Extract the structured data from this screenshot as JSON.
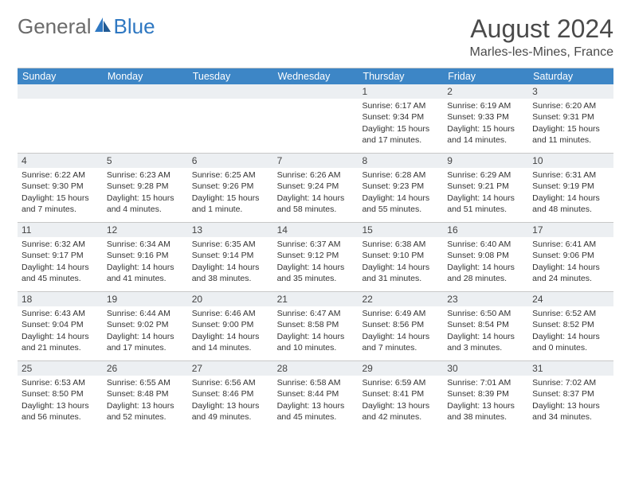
{
  "logo": {
    "part1": "General",
    "part2": "Blue"
  },
  "title": "August 2024",
  "subtitle": "Marles-les-Mines, France",
  "header_bg": "#3d86c6",
  "daynum_bg": "#eceff2",
  "border_color": "#c8c8c8",
  "text_color": "#333333",
  "weekdays": [
    "Sunday",
    "Monday",
    "Tuesday",
    "Wednesday",
    "Thursday",
    "Friday",
    "Saturday"
  ],
  "weeks": [
    [
      {
        "num": "",
        "lines": []
      },
      {
        "num": "",
        "lines": []
      },
      {
        "num": "",
        "lines": []
      },
      {
        "num": "",
        "lines": []
      },
      {
        "num": "1",
        "lines": [
          "Sunrise: 6:17 AM",
          "Sunset: 9:34 PM",
          "Daylight: 15 hours",
          "and 17 minutes."
        ]
      },
      {
        "num": "2",
        "lines": [
          "Sunrise: 6:19 AM",
          "Sunset: 9:33 PM",
          "Daylight: 15 hours",
          "and 14 minutes."
        ]
      },
      {
        "num": "3",
        "lines": [
          "Sunrise: 6:20 AM",
          "Sunset: 9:31 PM",
          "Daylight: 15 hours",
          "and 11 minutes."
        ]
      }
    ],
    [
      {
        "num": "4",
        "lines": [
          "Sunrise: 6:22 AM",
          "Sunset: 9:30 PM",
          "Daylight: 15 hours",
          "and 7 minutes."
        ]
      },
      {
        "num": "5",
        "lines": [
          "Sunrise: 6:23 AM",
          "Sunset: 9:28 PM",
          "Daylight: 15 hours",
          "and 4 minutes."
        ]
      },
      {
        "num": "6",
        "lines": [
          "Sunrise: 6:25 AM",
          "Sunset: 9:26 PM",
          "Daylight: 15 hours",
          "and 1 minute."
        ]
      },
      {
        "num": "7",
        "lines": [
          "Sunrise: 6:26 AM",
          "Sunset: 9:24 PM",
          "Daylight: 14 hours",
          "and 58 minutes."
        ]
      },
      {
        "num": "8",
        "lines": [
          "Sunrise: 6:28 AM",
          "Sunset: 9:23 PM",
          "Daylight: 14 hours",
          "and 55 minutes."
        ]
      },
      {
        "num": "9",
        "lines": [
          "Sunrise: 6:29 AM",
          "Sunset: 9:21 PM",
          "Daylight: 14 hours",
          "and 51 minutes."
        ]
      },
      {
        "num": "10",
        "lines": [
          "Sunrise: 6:31 AM",
          "Sunset: 9:19 PM",
          "Daylight: 14 hours",
          "and 48 minutes."
        ]
      }
    ],
    [
      {
        "num": "11",
        "lines": [
          "Sunrise: 6:32 AM",
          "Sunset: 9:17 PM",
          "Daylight: 14 hours",
          "and 45 minutes."
        ]
      },
      {
        "num": "12",
        "lines": [
          "Sunrise: 6:34 AM",
          "Sunset: 9:16 PM",
          "Daylight: 14 hours",
          "and 41 minutes."
        ]
      },
      {
        "num": "13",
        "lines": [
          "Sunrise: 6:35 AM",
          "Sunset: 9:14 PM",
          "Daylight: 14 hours",
          "and 38 minutes."
        ]
      },
      {
        "num": "14",
        "lines": [
          "Sunrise: 6:37 AM",
          "Sunset: 9:12 PM",
          "Daylight: 14 hours",
          "and 35 minutes."
        ]
      },
      {
        "num": "15",
        "lines": [
          "Sunrise: 6:38 AM",
          "Sunset: 9:10 PM",
          "Daylight: 14 hours",
          "and 31 minutes."
        ]
      },
      {
        "num": "16",
        "lines": [
          "Sunrise: 6:40 AM",
          "Sunset: 9:08 PM",
          "Daylight: 14 hours",
          "and 28 minutes."
        ]
      },
      {
        "num": "17",
        "lines": [
          "Sunrise: 6:41 AM",
          "Sunset: 9:06 PM",
          "Daylight: 14 hours",
          "and 24 minutes."
        ]
      }
    ],
    [
      {
        "num": "18",
        "lines": [
          "Sunrise: 6:43 AM",
          "Sunset: 9:04 PM",
          "Daylight: 14 hours",
          "and 21 minutes."
        ]
      },
      {
        "num": "19",
        "lines": [
          "Sunrise: 6:44 AM",
          "Sunset: 9:02 PM",
          "Daylight: 14 hours",
          "and 17 minutes."
        ]
      },
      {
        "num": "20",
        "lines": [
          "Sunrise: 6:46 AM",
          "Sunset: 9:00 PM",
          "Daylight: 14 hours",
          "and 14 minutes."
        ]
      },
      {
        "num": "21",
        "lines": [
          "Sunrise: 6:47 AM",
          "Sunset: 8:58 PM",
          "Daylight: 14 hours",
          "and 10 minutes."
        ]
      },
      {
        "num": "22",
        "lines": [
          "Sunrise: 6:49 AM",
          "Sunset: 8:56 PM",
          "Daylight: 14 hours",
          "and 7 minutes."
        ]
      },
      {
        "num": "23",
        "lines": [
          "Sunrise: 6:50 AM",
          "Sunset: 8:54 PM",
          "Daylight: 14 hours",
          "and 3 minutes."
        ]
      },
      {
        "num": "24",
        "lines": [
          "Sunrise: 6:52 AM",
          "Sunset: 8:52 PM",
          "Daylight: 14 hours",
          "and 0 minutes."
        ]
      }
    ],
    [
      {
        "num": "25",
        "lines": [
          "Sunrise: 6:53 AM",
          "Sunset: 8:50 PM",
          "Daylight: 13 hours",
          "and 56 minutes."
        ]
      },
      {
        "num": "26",
        "lines": [
          "Sunrise: 6:55 AM",
          "Sunset: 8:48 PM",
          "Daylight: 13 hours",
          "and 52 minutes."
        ]
      },
      {
        "num": "27",
        "lines": [
          "Sunrise: 6:56 AM",
          "Sunset: 8:46 PM",
          "Daylight: 13 hours",
          "and 49 minutes."
        ]
      },
      {
        "num": "28",
        "lines": [
          "Sunrise: 6:58 AM",
          "Sunset: 8:44 PM",
          "Daylight: 13 hours",
          "and 45 minutes."
        ]
      },
      {
        "num": "29",
        "lines": [
          "Sunrise: 6:59 AM",
          "Sunset: 8:41 PM",
          "Daylight: 13 hours",
          "and 42 minutes."
        ]
      },
      {
        "num": "30",
        "lines": [
          "Sunrise: 7:01 AM",
          "Sunset: 8:39 PM",
          "Daylight: 13 hours",
          "and 38 minutes."
        ]
      },
      {
        "num": "31",
        "lines": [
          "Sunrise: 7:02 AM",
          "Sunset: 8:37 PM",
          "Daylight: 13 hours",
          "and 34 minutes."
        ]
      }
    ]
  ]
}
